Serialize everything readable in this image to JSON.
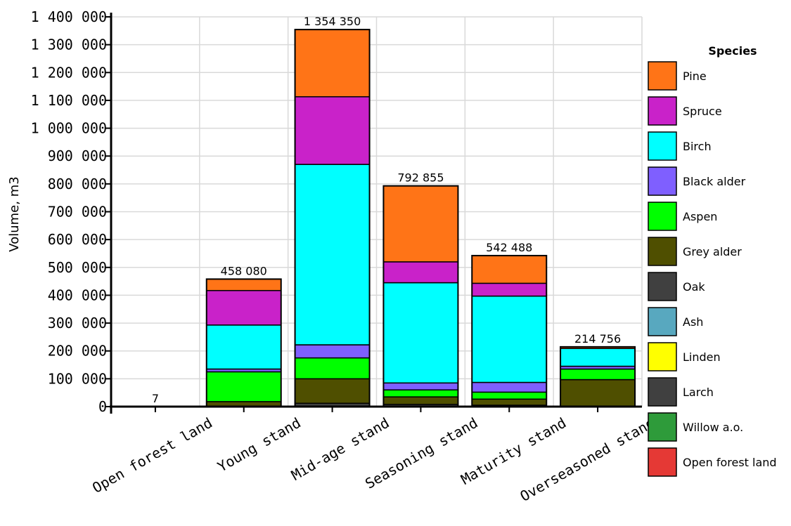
{
  "chart_data": {
    "type": "bar",
    "stacked": true,
    "categories": [
      "Open forest land",
      "Young stand",
      "Mid-age stand",
      "Seasoning stand",
      "Maturity stand",
      "Overseasoned stand"
    ],
    "totals": [
      7,
      458080,
      1354350,
      792855,
      542488,
      214756
    ],
    "total_labels": [
      "7",
      "458 080",
      "1 354 350",
      "792 855",
      "542 488",
      "214 756"
    ],
    "series": [
      {
        "name": "Open forest land",
        "color": "#e53935",
        "values": [
          7,
          0,
          0,
          0,
          0,
          0
        ]
      },
      {
        "name": "Willow a.o.",
        "color": "#2e9b3a",
        "values": [
          0,
          0,
          0,
          0,
          0,
          0
        ]
      },
      {
        "name": "Larch",
        "color": "#404040",
        "values": [
          0,
          0,
          0,
          0,
          0,
          0
        ]
      },
      {
        "name": "Linden",
        "color": "#ffff00",
        "values": [
          0,
          0,
          0,
          0,
          0,
          0
        ]
      },
      {
        "name": "Ash",
        "color": "#58a8bf",
        "values": [
          0,
          0,
          0,
          0,
          0,
          0
        ]
      },
      {
        "name": "Oak",
        "color": "#404040",
        "values": [
          0,
          0,
          12000,
          8000,
          5000,
          2000
        ]
      },
      {
        "name": "Grey alder",
        "color": "#4f4f00",
        "values": [
          0,
          18000,
          88000,
          27000,
          22000,
          95000
        ]
      },
      {
        "name": "Aspen",
        "color": "#00ff00",
        "values": [
          0,
          107000,
          75000,
          25000,
          25000,
          38000
        ]
      },
      {
        "name": "Black alder",
        "color": "#7f5fff",
        "values": [
          0,
          10000,
          47000,
          25000,
          35000,
          10000
        ]
      },
      {
        "name": "Birch",
        "color": "#00ffff",
        "values": [
          0,
          158000,
          648000,
          360000,
          310000,
          64000
        ]
      },
      {
        "name": "Spruce",
        "color": "#c922c9",
        "values": [
          0,
          124000,
          243000,
          75000,
          46000,
          0
        ]
      },
      {
        "name": "Pine",
        "color": "#ff7417",
        "values": [
          0,
          41080,
          241350,
          272855,
          99488,
          5756
        ]
      }
    ],
    "ylabel": "Volume, m3",
    "xlabel": "",
    "ylim": [
      0,
      1400000
    ],
    "yticks": [
      0,
      100000,
      200000,
      300000,
      400000,
      500000,
      600000,
      700000,
      800000,
      900000,
      1000000,
      1100000,
      1200000,
      1300000,
      1400000
    ],
    "ytick_labels": [
      "0",
      "100 000",
      "200 000",
      "300 000",
      "400 000",
      "500 000",
      "600 000",
      "700 000",
      "800 000",
      "900 000",
      "1 000 000",
      "1 100 000",
      "1 200 000",
      "1 300 000",
      "1 400 000"
    ],
    "grid": true,
    "legend": {
      "title": "Species",
      "placement": "right",
      "items": [
        "Pine",
        "Spruce",
        "Birch",
        "Black alder",
        "Aspen",
        "Grey alder",
        "Oak",
        "Ash",
        "Linden",
        "Larch",
        "Willow a.o.",
        "Open forest land"
      ]
    }
  }
}
